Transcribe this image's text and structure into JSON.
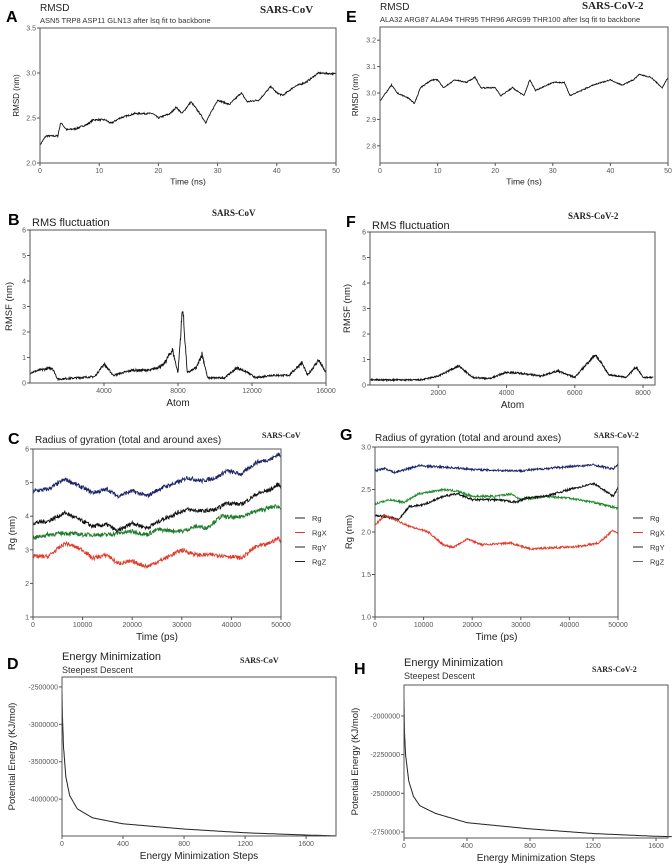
{
  "chart_data": [
    {
      "panel": "A",
      "type": "line",
      "title": "RMSD",
      "subtitle": "ASN5 TRP8 ASP11 GLN13 after lsq fit to backbone",
      "virus": "SARS-CoV",
      "xlabel": "Time (ns)",
      "ylabel": "RMSD (nm)",
      "xlim": [
        0,
        50
      ],
      "ylim": [
        2.0,
        3.5
      ],
      "xticks": [
        "0",
        "10",
        "20",
        "30",
        "40",
        "50"
      ],
      "yticks": [
        "2.0",
        "2.5",
        "3.0",
        "3.5"
      ],
      "series": [
        {
          "name": "RMSD",
          "color": "#111111",
          "x": [
            0,
            1,
            3,
            3.5,
            4.5,
            6,
            8,
            9,
            11,
            12,
            13.5,
            16,
            19,
            20,
            22,
            23,
            24,
            25.5,
            27,
            28,
            30,
            32,
            34,
            35,
            37,
            39,
            40,
            41,
            43,
            45,
            47,
            50
          ],
          "y": [
            2.2,
            2.3,
            2.3,
            2.45,
            2.37,
            2.38,
            2.43,
            2.48,
            2.48,
            2.44,
            2.5,
            2.55,
            2.55,
            2.5,
            2.55,
            2.62,
            2.55,
            2.68,
            2.55,
            2.45,
            2.7,
            2.65,
            2.78,
            2.68,
            2.7,
            2.85,
            2.78,
            2.75,
            2.85,
            2.9,
            3.0,
            2.99
          ]
        }
      ]
    },
    {
      "panel": "B",
      "type": "line",
      "title": "RMS fluctuation",
      "subtitle": "",
      "virus": "SARS-CoV",
      "xlabel": "Atom",
      "ylabel": "RMSF (nm)",
      "xlim": [
        0,
        16000
      ],
      "ylim": [
        0,
        6
      ],
      "xticks": [
        "4000",
        "8000",
        "12000",
        "16000"
      ],
      "yticks": [
        "0",
        "1",
        "2",
        "3",
        "4",
        "5",
        "6"
      ],
      "series": [
        {
          "name": "RMSF",
          "color": "#111111",
          "x": [
            0,
            500,
            1200,
            1500,
            2500,
            3500,
            4000,
            4500,
            5500,
            6500,
            7200,
            7700,
            8000,
            8250,
            8500,
            9000,
            9300,
            9600,
            10500,
            11200,
            11800,
            12200,
            13000,
            14000,
            14700,
            15000,
            15600,
            16000
          ],
          "y": [
            0.4,
            0.5,
            0.6,
            0.15,
            0.2,
            0.25,
            0.75,
            0.3,
            0.5,
            0.5,
            0.7,
            1.3,
            0.4,
            3.0,
            0.4,
            0.6,
            1.15,
            0.2,
            0.2,
            0.6,
            0.4,
            0.2,
            0.3,
            0.3,
            0.8,
            0.3,
            0.9,
            0.4
          ]
        }
      ]
    },
    {
      "panel": "C",
      "type": "line",
      "title": "Radius of gyration (total and around axes)",
      "subtitle": "",
      "virus": "SARS-CoV",
      "xlabel": "Time (ps)",
      "ylabel": "Rg (nm)",
      "xlim": [
        0,
        50000
      ],
      "ylim": [
        1,
        6
      ],
      "xticks": [
        "0",
        "10000",
        "20000",
        "30000",
        "40000",
        "50000"
      ],
      "yticks": [
        "1",
        "2",
        "3",
        "4",
        "5",
        "6"
      ],
      "legend": [
        {
          "label": "Rg",
          "color": "#222222"
        },
        {
          "label": "RgX",
          "color": "#e03a2a"
        },
        {
          "label": "RgY",
          "color": "#222222"
        },
        {
          "label": "RgZ",
          "color": "#222222"
        }
      ],
      "series": [
        {
          "name": "RgZ",
          "color": "#1b2466",
          "x": [
            0,
            3000,
            6500,
            10000,
            12000,
            15000,
            17000,
            20000,
            23000,
            26000,
            30000,
            31000,
            34000,
            37000,
            39000,
            42000,
            45000,
            48000,
            49500,
            50000
          ],
          "y": [
            4.75,
            4.8,
            5.1,
            4.85,
            4.7,
            4.8,
            4.6,
            4.75,
            4.6,
            4.85,
            5.05,
            5.15,
            5.05,
            5.15,
            5.35,
            5.25,
            5.6,
            5.7,
            5.85,
            5.75
          ]
        },
        {
          "name": "Rg",
          "color": "#111111",
          "x": [
            0,
            3000,
            6500,
            10000,
            12000,
            15000,
            17000,
            20000,
            23000,
            26000,
            30000,
            31000,
            34000,
            37000,
            39000,
            42000,
            45000,
            48000,
            49500,
            50000
          ],
          "y": [
            3.8,
            3.85,
            4.1,
            3.85,
            3.7,
            3.75,
            3.55,
            3.8,
            3.65,
            3.9,
            4.15,
            4.2,
            4.15,
            4.2,
            4.4,
            4.35,
            4.65,
            4.8,
            4.95,
            4.85
          ]
        },
        {
          "name": "RgY",
          "color": "#1e7a2a",
          "x": [
            0,
            3000,
            6500,
            10000,
            15000,
            20000,
            23000,
            25000,
            30000,
            33000,
            35000,
            38000,
            41000,
            45000,
            49000,
            50000
          ],
          "y": [
            3.35,
            3.45,
            3.5,
            3.45,
            3.45,
            3.55,
            3.45,
            3.6,
            3.55,
            3.7,
            3.65,
            4.0,
            3.95,
            4.15,
            4.3,
            4.25
          ]
        },
        {
          "name": "RgX",
          "color": "#e03a2a",
          "x": [
            0,
            3000,
            6500,
            10000,
            12000,
            15000,
            17000,
            20000,
            23000,
            26000,
            30000,
            33000,
            37000,
            40000,
            42000,
            45000,
            47000,
            49500,
            50000
          ],
          "y": [
            2.8,
            2.8,
            3.2,
            3.0,
            2.75,
            2.85,
            2.6,
            2.65,
            2.5,
            2.7,
            3.0,
            2.85,
            2.85,
            2.8,
            2.75,
            3.1,
            3.15,
            3.35,
            3.25
          ]
        }
      ]
    },
    {
      "panel": "D",
      "type": "line",
      "title": "Energy Minimization",
      "subtitle": "Steepest Descent",
      "virus": "SARS-CoV",
      "xlabel": "Energy Minimization Steps",
      "ylabel": "Potential Energy (KJ/mol)",
      "xlim": [
        0,
        1796
      ],
      "ylim": [
        -4493000,
        -2367000
      ],
      "xticks": [
        "0",
        "400",
        "800",
        "1200",
        "1600"
      ],
      "yticks": [
        "-2500000",
        "-3000000",
        "-3500000",
        "-4000000"
      ],
      "series": [
        {
          "name": "Potential Energy",
          "color": "#222222",
          "x": [
            0,
            3,
            10,
            25,
            50,
            100,
            200,
            400,
            800,
            1200,
            1600,
            1790
          ],
          "y": [
            -2550000,
            -2900000,
            -3300000,
            -3700000,
            -3950000,
            -4130000,
            -4250000,
            -4330000,
            -4400000,
            -4450000,
            -4480000,
            -4490000
          ]
        }
      ]
    },
    {
      "panel": "E",
      "type": "line",
      "title": "RMSD",
      "subtitle": "ALA32 ARG87 ALA94 THR95 THR96 ARG99 THR100 after lsq fit to backbone",
      "virus": "SARS-CoV-2",
      "xlabel": "Time (ns)",
      "ylabel": "RMSD (nm)",
      "xlim": [
        0,
        50
      ],
      "ylim": [
        2.735,
        3.25
      ],
      "xticks": [
        "0",
        "10",
        "20",
        "30",
        "40",
        "50"
      ],
      "yticks": [
        "2.8",
        "2.9",
        "3.0",
        "3.1",
        "3.2"
      ],
      "series": [
        {
          "name": "RMSD",
          "color": "#111111",
          "x": [
            0,
            2,
            3,
            5,
            6,
            7,
            9,
            10,
            11,
            13,
            15,
            16.5,
            17.5,
            20,
            21,
            23,
            25,
            26,
            27,
            30,
            32,
            33,
            35,
            37,
            40,
            42,
            44,
            45,
            47,
            49,
            50
          ],
          "y": [
            2.97,
            3.03,
            3.0,
            2.98,
            2.96,
            3.02,
            3.05,
            3.05,
            3.02,
            3.05,
            3.04,
            3.06,
            3.02,
            3.02,
            2.99,
            3.02,
            2.99,
            3.05,
            3.01,
            3.04,
            3.04,
            2.99,
            3.01,
            3.03,
            3.05,
            3.03,
            3.05,
            3.07,
            3.06,
            3.02,
            3.06
          ]
        }
      ]
    },
    {
      "panel": "F",
      "type": "line",
      "title": "RMS fluctuation",
      "subtitle": "",
      "virus": "SARS-CoV-2",
      "xlabel": "Atom",
      "ylabel": "RMSF (nm)",
      "xlim": [
        0,
        8350
      ],
      "ylim": [
        0,
        6
      ],
      "xticks": [
        "2000",
        "4000",
        "6000",
        "8000"
      ],
      "yticks": [
        "0",
        "1",
        "2",
        "3",
        "4",
        "5",
        "6"
      ],
      "series": [
        {
          "name": "RMSF",
          "color": "#111111",
          "x": [
            0,
            1000,
            1500,
            2000,
            2600,
            3000,
            3500,
            4000,
            4500,
            5000,
            5500,
            6000,
            6600,
            7000,
            7500,
            7800,
            8000,
            8300
          ],
          "y": [
            0.2,
            0.2,
            0.2,
            0.35,
            0.75,
            0.3,
            0.25,
            0.5,
            0.45,
            0.35,
            0.55,
            0.3,
            1.2,
            0.4,
            0.3,
            0.7,
            0.3,
            0.3
          ]
        }
      ]
    },
    {
      "panel": "G",
      "type": "line",
      "title": "Radius of gyration (total and around axes)",
      "subtitle": "",
      "virus": "SARS-CoV-2",
      "xlabel": "Time (ps)",
      "ylabel": "Rg (nm)",
      "xlim": [
        0,
        50000
      ],
      "ylim": [
        1.0,
        3.0
      ],
      "xticks": [
        "0",
        "10000",
        "20000",
        "30000",
        "40000",
        "50000"
      ],
      "yticks": [
        "1.0",
        "1.5",
        "2.0",
        "2.5",
        "3.0"
      ],
      "legend": [
        {
          "label": "Rg",
          "color": "#222222"
        },
        {
          "label": "RgX",
          "color": "#e03a2a"
        },
        {
          "label": "RgY",
          "color": "#222222"
        },
        {
          "label": "RgZ",
          "color": "#666666"
        }
      ],
      "series": [
        {
          "name": "RgZ",
          "color": "#1b2466",
          "x": [
            0,
            2000,
            4000,
            9000,
            15000,
            22000,
            30000,
            38000,
            45000,
            49000,
            50000
          ],
          "y": [
            2.72,
            2.75,
            2.7,
            2.78,
            2.76,
            2.73,
            2.72,
            2.76,
            2.79,
            2.74,
            2.8
          ]
        },
        {
          "name": "RgY",
          "color": "#1e8a2a",
          "x": [
            0,
            3000,
            6000,
            9000,
            14000,
            17000,
            20000,
            25000,
            28000,
            30000,
            35000,
            40000,
            45000,
            50000
          ],
          "y": [
            2.33,
            2.38,
            2.35,
            2.45,
            2.5,
            2.48,
            2.42,
            2.42,
            2.45,
            2.38,
            2.42,
            2.4,
            2.35,
            2.28
          ]
        },
        {
          "name": "Rg",
          "color": "#111111",
          "x": [
            0,
            5000,
            7000,
            10000,
            14000,
            17000,
            20000,
            25000,
            29000,
            31000,
            35000,
            40000,
            45000,
            47000,
            49000,
            50000
          ],
          "y": [
            2.2,
            2.15,
            2.3,
            2.32,
            2.42,
            2.45,
            2.38,
            2.38,
            2.35,
            2.4,
            2.42,
            2.5,
            2.57,
            2.5,
            2.42,
            2.52
          ]
        },
        {
          "name": "RgX",
          "color": "#e03a2a",
          "x": [
            0,
            2000,
            5000,
            8000,
            11000,
            14000,
            16000,
            19000,
            22000,
            28000,
            32000,
            38000,
            42000,
            46000,
            49000,
            50000
          ],
          "y": [
            2.08,
            2.2,
            2.12,
            2.05,
            2.0,
            1.85,
            1.82,
            1.92,
            1.85,
            1.87,
            1.8,
            1.82,
            1.83,
            1.87,
            2.02,
            1.98
          ]
        }
      ]
    },
    {
      "panel": "H",
      "type": "line",
      "title": "Energy Minimization",
      "subtitle": "Steepest Descent",
      "virus": "SARS-CoV-2",
      "xlabel": "Energy Minimization Steps",
      "ylabel": "Potential Energy (KJ/mol)",
      "xlim": [
        0,
        1676
      ],
      "ylim": [
        -2789000,
        -1800000
      ],
      "xticks": [
        "0",
        "400",
        "800",
        "1200",
        "1600"
      ],
      "yticks": [
        "-2000000",
        "-2250000",
        "-2500000",
        "-2750000"
      ],
      "series": [
        {
          "name": "Potential Energy",
          "color": "#222222",
          "x": [
            0,
            3,
            10,
            30,
            60,
            100,
            200,
            400,
            800,
            1200,
            1600,
            1700
          ],
          "y": [
            -1880000,
            -2100000,
            -2250000,
            -2420000,
            -2520000,
            -2580000,
            -2630000,
            -2690000,
            -2730000,
            -2760000,
            -2778000,
            -2780000
          ]
        }
      ]
    }
  ]
}
